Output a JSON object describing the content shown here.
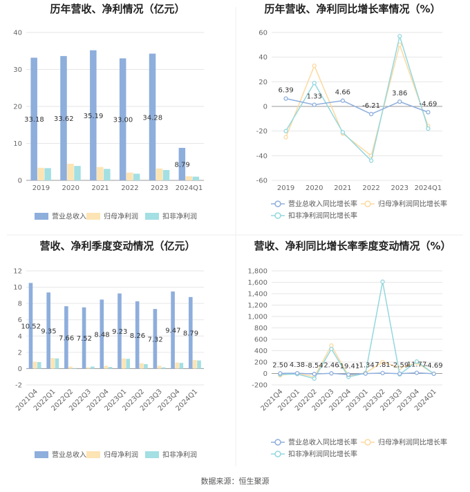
{
  "source_label": "数据来源：恒生聚源",
  "colors": {
    "revenue": "#8eaedc",
    "parent_profit": "#fde4b4",
    "deducted_profit": "#a3dfe3",
    "grid": "#e6e6e6",
    "axis": "#999999"
  },
  "chart_data": [
    {
      "id": "annual-amounts",
      "type": "bar",
      "title": "历年营收、净利情况（亿元）",
      "categories": [
        "2019",
        "2020",
        "2021",
        "2022",
        "2023",
        "2024Q1"
      ],
      "ylim": [
        0,
        40
      ],
      "yticks": [
        "0",
        "10",
        "20",
        "30",
        "40"
      ],
      "legend_position": "bottom",
      "series": [
        {
          "name": "营业总收入",
          "values": [
            33.18,
            33.62,
            35.19,
            33.0,
            34.28,
            8.79
          ],
          "labels": [
            "33.18",
            "33.62",
            "35.19",
            "33.00",
            "34.28",
            "8.79"
          ]
        },
        {
          "name": "归母净利润",
          "values": [
            3.4,
            4.5,
            3.6,
            2.1,
            3.2,
            1.1
          ]
        },
        {
          "name": "扣非净利润",
          "values": [
            3.3,
            3.9,
            3.1,
            1.8,
            2.8,
            1.0
          ]
        }
      ]
    },
    {
      "id": "annual-growth",
      "type": "line",
      "title": "历年营收、净利同比增长率情况（%）",
      "categories": [
        "2019",
        "2020",
        "2021",
        "2022",
        "2023",
        "2024Q1"
      ],
      "ylim": [
        -60,
        60
      ],
      "yticks": [
        "-60",
        "-40",
        "-20",
        "0",
        "20",
        "40",
        "60"
      ],
      "legend_position": "bottom",
      "series": [
        {
          "name": "营业总收入同比增长率",
          "values": [
            6.39,
            1.33,
            4.66,
            -6.21,
            3.86,
            -4.69
          ],
          "labels": [
            "6.39",
            "1.33",
            "4.66",
            "-6.21",
            "3.86",
            "-4.69"
          ]
        },
        {
          "name": "归母净利润同比增长率",
          "values": [
            -25,
            33,
            -22,
            -40,
            50,
            -16
          ]
        },
        {
          "name": "扣非净利润同比增长率",
          "values": [
            -20,
            19,
            -21,
            -44,
            57,
            -18
          ]
        }
      ]
    },
    {
      "id": "quarterly-amounts",
      "type": "bar",
      "title": "营收、净利季度变动情况（亿元）",
      "categories": [
        "2021Q4",
        "2022Q1",
        "2022Q2",
        "2022Q3",
        "2022Q4",
        "2023Q1",
        "2023Q2",
        "2023Q3",
        "2023Q4",
        "2024Q1"
      ],
      "ylim": [
        -2,
        12
      ],
      "yticks": [
        "-2",
        "0",
        "2",
        "4",
        "6",
        "8",
        "10",
        "12"
      ],
      "legend_position": "bottom",
      "series": [
        {
          "name": "营业总收入",
          "values": [
            10.52,
            9.35,
            7.66,
            7.52,
            8.48,
            9.23,
            8.26,
            7.32,
            9.47,
            8.79
          ],
          "labels": [
            "10.52",
            "9.35",
            "7.66",
            "7.52",
            "8.48",
            "9.23",
            "8.26",
            "7.32",
            "9.47",
            "8.79"
          ]
        },
        {
          "name": "归母净利润",
          "values": [
            0.85,
            1.3,
            0.25,
            0.15,
            0.35,
            1.25,
            0.65,
            0.35,
            0.75,
            1.05
          ]
        },
        {
          "name": "扣非净利润",
          "values": [
            0.8,
            1.25,
            0.05,
            0.25,
            0.2,
            1.2,
            0.55,
            0.15,
            0.7,
            1.0
          ]
        }
      ]
    },
    {
      "id": "quarterly-growth",
      "type": "line",
      "title": "营收、净利同比增长率季度变动情况（%）",
      "categories": [
        "2021Q4",
        "2022Q1",
        "2022Q2",
        "2022Q3",
        "2022Q4",
        "2023Q1",
        "2023Q2",
        "2023Q3",
        "2023Q4",
        "2024Q1"
      ],
      "ylim": [
        -200,
        1800
      ],
      "yticks": [
        "-200",
        "0",
        "200",
        "400",
        "600",
        "800",
        "1,000",
        "1,200",
        "1,400",
        "1,600",
        "1,800"
      ],
      "legend_position": "bottom",
      "series": [
        {
          "name": "营业总收入同比增长率",
          "values": [
            2.5,
            4.38,
            -8.54,
            2.46,
            -19.41,
            -1.34,
            7.81,
            -2.59,
            11.77,
            -4.69
          ],
          "labels": [
            "2.50",
            "4.38",
            "-8.54",
            "2.46",
            "-19.41",
            "-1.34",
            "7.81",
            "-2.59",
            "11.77",
            "-4.69"
          ]
        },
        {
          "name": "归母净利润同比增长率",
          "values": [
            -30,
            5,
            -60,
            490,
            -40,
            10,
            200,
            100,
            190,
            -5
          ]
        },
        {
          "name": "扣非净利润同比增长率",
          "values": [
            -15,
            -10,
            -90,
            430,
            -60,
            5,
            1610,
            -15,
            210,
            -5
          ]
        }
      ]
    }
  ]
}
